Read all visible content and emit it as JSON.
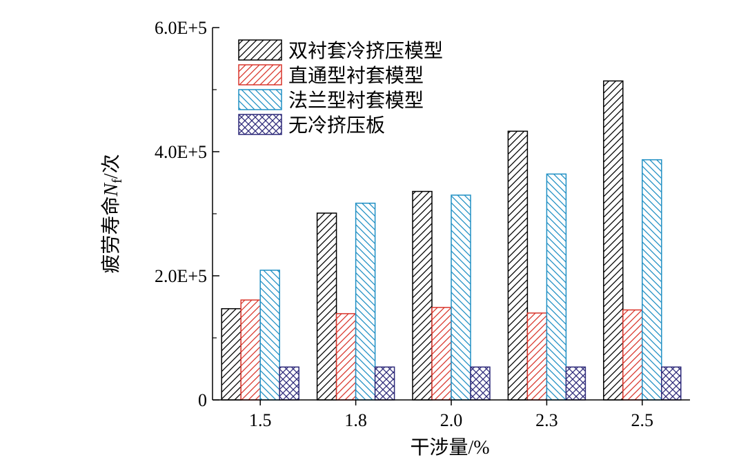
{
  "chart_data": {
    "type": "bar",
    "title": "",
    "xlabel": "干涉量/%",
    "ylabel": "疲劳寿命Nf/次",
    "ylabel_parts": {
      "prefix": "疲劳寿命",
      "symbol": "N",
      "subscript": "f",
      "suffix": "/次"
    },
    "categories": [
      "1.5",
      "1.8",
      "2.0",
      "2.3",
      "2.5"
    ],
    "ylim": [
      0,
      600000
    ],
    "yticks": [
      {
        "value": 0,
        "label": "0"
      },
      {
        "value": 200000,
        "label": "2.0E+5"
      },
      {
        "value": 400000,
        "label": "4.0E+5"
      },
      {
        "value": 600000,
        "label": "6.0E+5"
      }
    ],
    "grid": false,
    "legend_position": "top-left",
    "series": [
      {
        "name": "双衬套冷挤压模型",
        "color": "#000000",
        "hatch": "diagonal-up",
        "values": [
          147000,
          301000,
          336000,
          433000,
          514000
        ]
      },
      {
        "name": "直通型衬套模型",
        "color": "#d9352b",
        "hatch": "diagonal-up",
        "values": [
          161000,
          139000,
          149000,
          140000,
          145000
        ]
      },
      {
        "name": "法兰型衬套模型",
        "color": "#1f8fc4",
        "hatch": "diagonal-down",
        "values": [
          209000,
          317000,
          330000,
          364000,
          387000
        ]
      },
      {
        "name": "无冷挤压板",
        "color": "#2e2a7a",
        "hatch": "cross",
        "values": [
          53000,
          53000,
          53000,
          53000,
          53000
        ]
      }
    ]
  }
}
